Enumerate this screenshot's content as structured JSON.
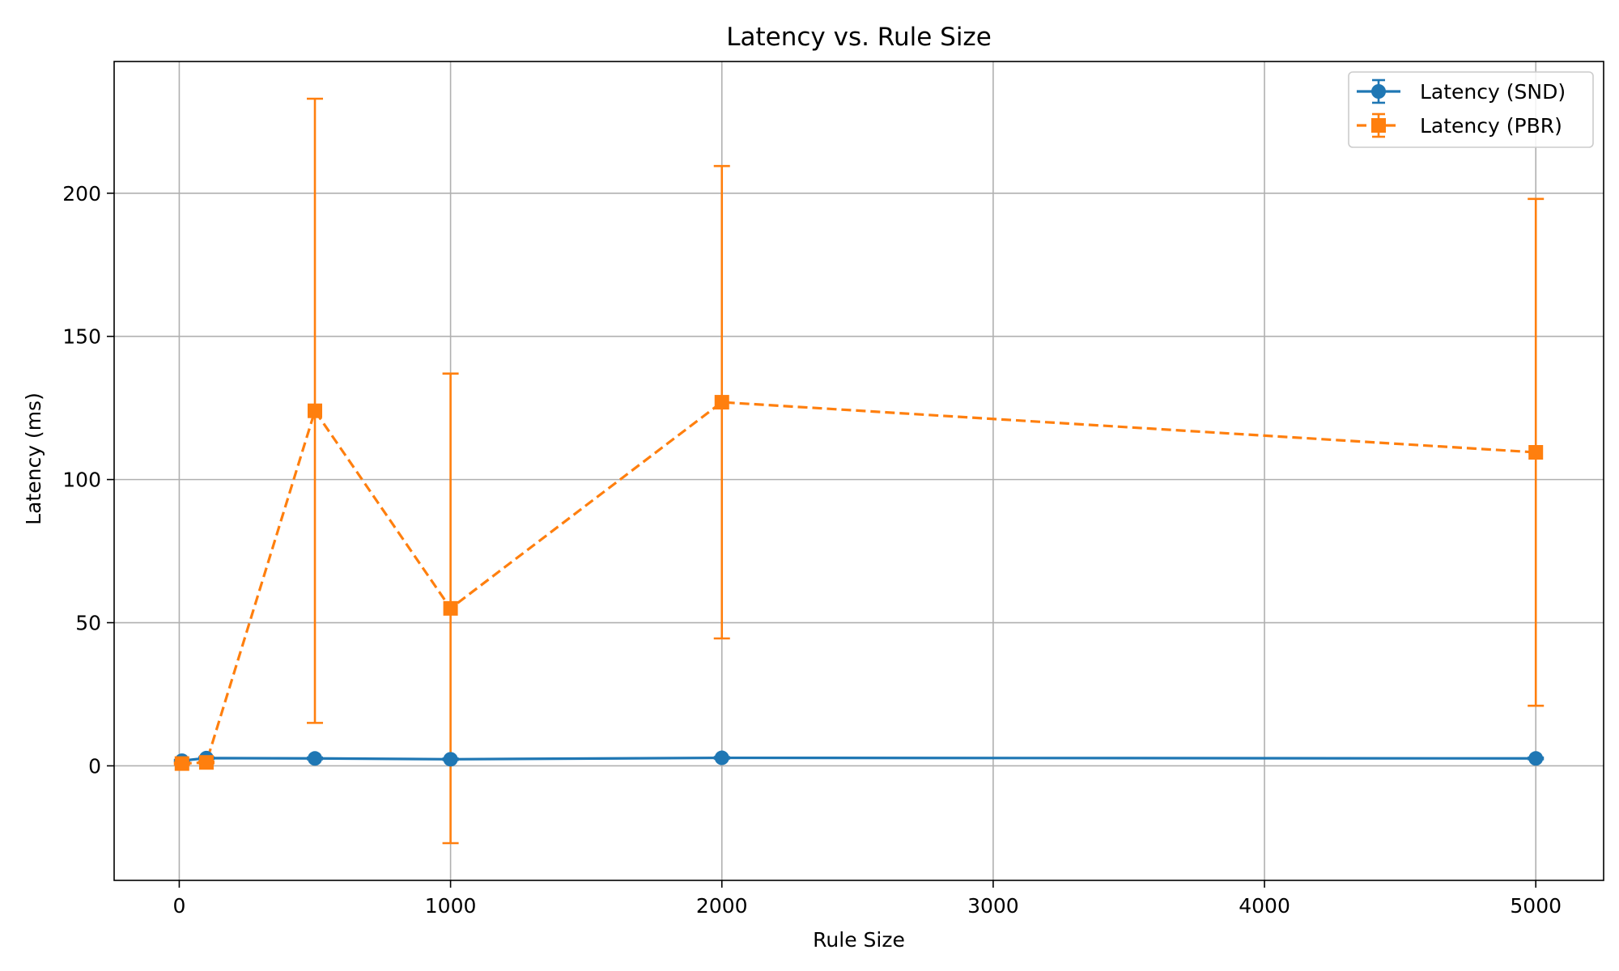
{
  "chart_data": {
    "type": "line",
    "title": "Latency vs. Rule Size",
    "xlabel": "Rule Size",
    "ylabel": "Latency (ms)",
    "xlim": [
      -240,
      5250
    ],
    "ylim": [
      -40,
      246
    ],
    "xticks": [
      0,
      1000,
      2000,
      3000,
      4000,
      5000
    ],
    "yticks": [
      0,
      50,
      100,
      150,
      200
    ],
    "grid": true,
    "legend_position": "top-right",
    "x": [
      10,
      100,
      500,
      1000,
      2000,
      5000
    ],
    "series": [
      {
        "name": "Latency (SND)",
        "color": "#1f77b4",
        "marker": "circle",
        "linestyle": "solid",
        "values": [
          1.8,
          2.7,
          2.6,
          2.3,
          2.8,
          2.6
        ],
        "errors": [
          0.3,
          0.3,
          0.3,
          0.3,
          0.3,
          0.3
        ]
      },
      {
        "name": "Latency (PBR)",
        "color": "#ff7f0e",
        "marker": "square",
        "linestyle": "dashed",
        "values": [
          0.8,
          1.2,
          124,
          55,
          127,
          109.5
        ],
        "errors": [
          0.3,
          0.3,
          109,
          82,
          82.5,
          88.5
        ]
      }
    ]
  }
}
